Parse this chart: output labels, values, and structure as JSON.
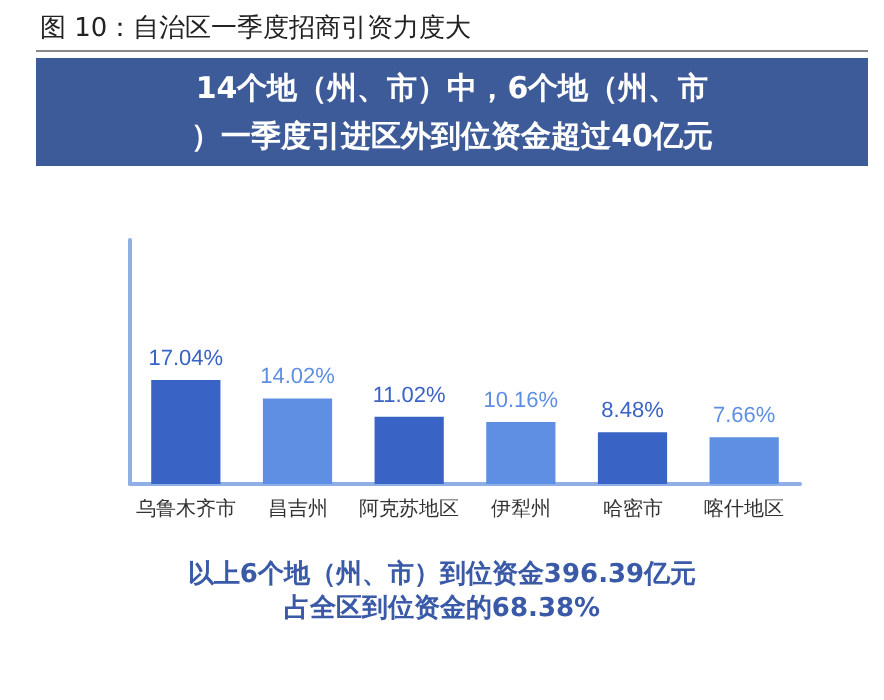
{
  "chart_data": {
    "type": "bar",
    "title": "图 10：自治区一季度招商引资力度大",
    "subtitle": "14个地（州、市）中，6个地（州、市）一季度引进区外到位资金超过40亿元",
    "categories": [
      "乌鲁木齐市",
      "昌吉州",
      "阿克苏地区",
      "伊犁州",
      "哈密市",
      "喀什地区"
    ],
    "values": [
      17.04,
      14.02,
      11.02,
      10.16,
      8.48,
      7.66
    ],
    "colors": [
      "#3a63c6",
      "#5f8fe2",
      "#3a63c6",
      "#5f8fe2",
      "#3a63c6",
      "#5f8fe2"
    ],
    "value_labels": [
      "17.04%",
      "14.02%",
      "11.02%",
      "10.16%",
      "8.48%",
      "7.66%"
    ],
    "annotations": [
      "以上6个地（州、市）到位资金396.39亿元",
      "占全区到位资金的68.38%"
    ],
    "tick_labels": "x"
  }
}
